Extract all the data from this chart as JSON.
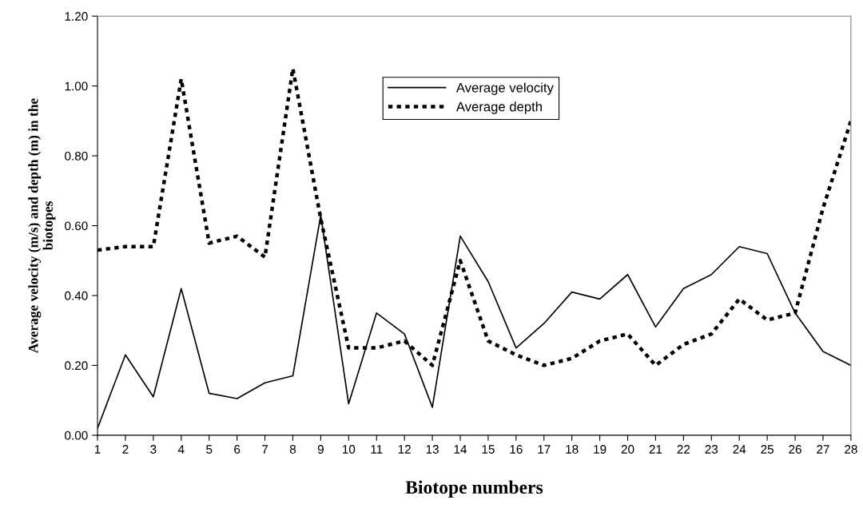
{
  "chart_data": {
    "type": "line",
    "xlabel": "Biotope numbers",
    "ylabel": "Average velocity (m/s) and depth (m) in the\nbiotopes",
    "categories": [
      "1",
      "2",
      "3",
      "4",
      "5",
      "6",
      "7",
      "8",
      "9",
      "10",
      "11",
      "12",
      "13",
      "14",
      "15",
      "16",
      "17",
      "18",
      "19",
      "20",
      "21",
      "22",
      "23",
      "24",
      "25",
      "26",
      "27",
      "28"
    ],
    "series": [
      {
        "name": "Average velocity",
        "color": "#000000",
        "line_style": "solid",
        "values": [
          0.02,
          0.23,
          0.11,
          0.42,
          0.12,
          0.105,
          0.15,
          0.17,
          0.63,
          0.09,
          0.35,
          0.29,
          0.08,
          0.57,
          0.44,
          0.25,
          0.32,
          0.41,
          0.39,
          0.46,
          0.31,
          0.42,
          0.46,
          0.54,
          0.52,
          0.35,
          0.24,
          0.2
        ]
      },
      {
        "name": "Average depth",
        "color": "#000000",
        "line_style": "dotted",
        "values": [
          0.53,
          0.54,
          0.54,
          1.02,
          0.55,
          0.57,
          0.51,
          1.05,
          0.62,
          0.25,
          0.25,
          0.27,
          0.2,
          0.5,
          0.27,
          0.23,
          0.2,
          0.22,
          0.27,
          0.29,
          0.2,
          0.26,
          0.29,
          0.39,
          0.33,
          0.35,
          0.65,
          0.9
        ]
      }
    ],
    "ylim": [
      0,
      1.2
    ],
    "yticks": [
      {
        "value": 0,
        "label": "0.00"
      },
      {
        "value": 0.2,
        "label": "0.20"
      },
      {
        "value": 0.4,
        "label": "0.40"
      },
      {
        "value": 0.6,
        "label": "0.60"
      },
      {
        "value": 0.8,
        "label": "0.80"
      },
      {
        "value": 1.0,
        "label": "1.00"
      },
      {
        "value": 1.2,
        "label": "1.20"
      }
    ],
    "grid": false,
    "legend": "top",
    "marker": "none"
  }
}
